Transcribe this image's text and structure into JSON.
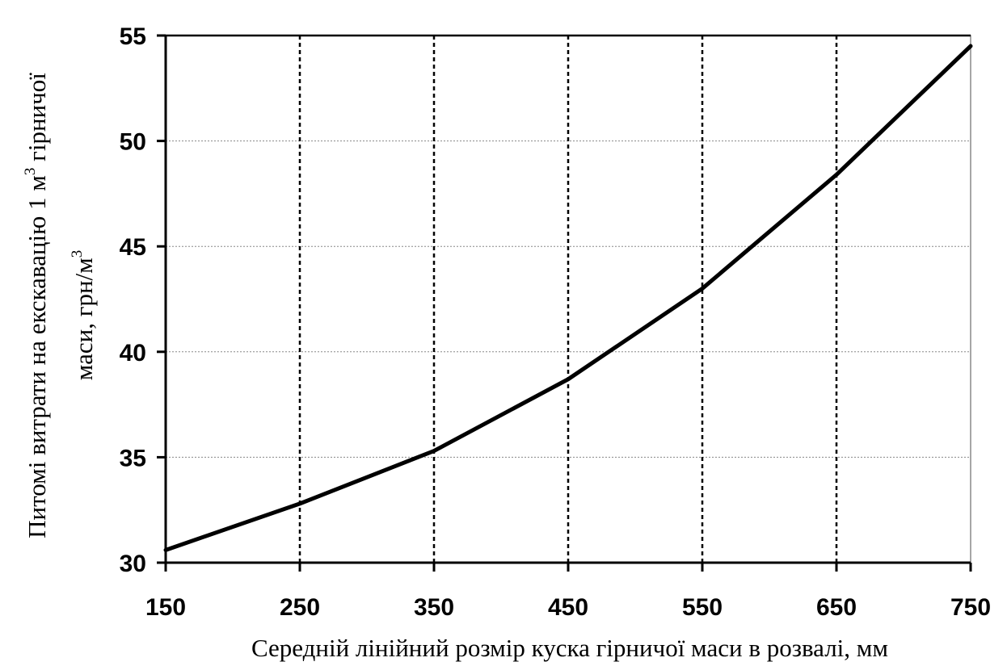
{
  "chart_data": {
    "type": "line",
    "title": "",
    "xlabel": "Середній лінійний розмір куска гірничої маси в розвалі, мм",
    "ylabel_line1": "Питомі витрати на екскавацію 1 м",
    "ylabel_line1_sup": "3",
    "ylabel_line1_tail": " гірничої",
    "ylabel_line2": "маси, грн/м",
    "ylabel_line2_sup": "3",
    "xlim": [
      150,
      750
    ],
    "ylim": [
      30,
      55
    ],
    "x_ticks": [
      150,
      250,
      350,
      450,
      550,
      650,
      750
    ],
    "x_tick_labels": [
      "150",
      "250",
      "350",
      "450",
      "550",
      "650",
      "750"
    ],
    "y_ticks": [
      30,
      35,
      40,
      45,
      50,
      55
    ],
    "y_tick_labels": [
      "30",
      "35",
      "40",
      "45",
      "50",
      "55"
    ],
    "vertical_grid": "dotted",
    "horizontal_grid": "dotted",
    "legend": "none",
    "series": [
      {
        "color": "#000000",
        "x": [
          150,
          250,
          350,
          450,
          550,
          650,
          750
        ],
        "y": [
          30.6,
          32.8,
          35.3,
          38.7,
          43.0,
          48.4,
          54.5
        ]
      }
    ]
  }
}
